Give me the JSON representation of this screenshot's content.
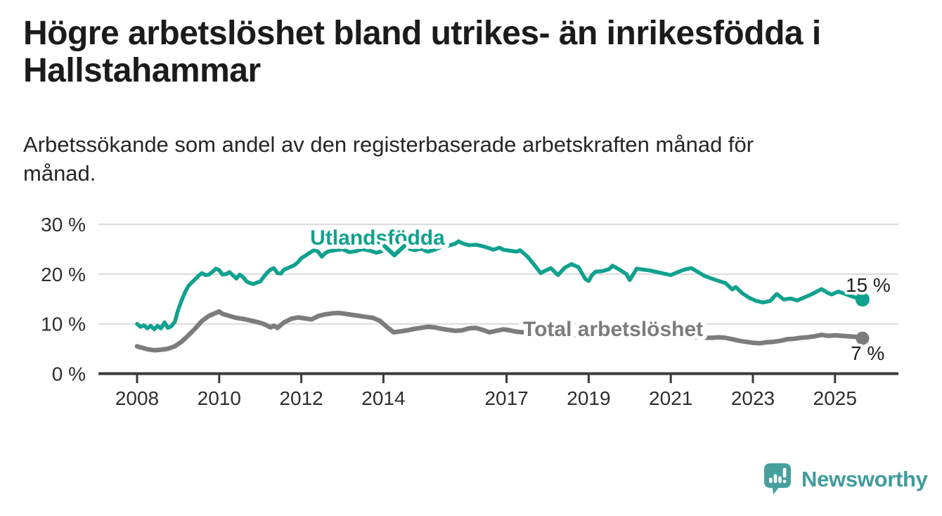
{
  "header": {
    "title": "Högre arbetslöshet bland utrikes- än inrikesfödda i Hallstahammar",
    "subtitle": "Arbetssökande som andel av den registerbaserade arbetskraften månad för månad."
  },
  "footer": {
    "brand": "Newsworthy",
    "logo_icon": "newsworthy-speech-bubble-bar-chart-icon"
  },
  "colors": {
    "accent_teal": "#10a18f",
    "total_gray": "#7c7c7c",
    "grid": "#dadada",
    "axis": "#3b3b3b",
    "axis_text": "#2e2e2e",
    "value_text": "#1f1f1f",
    "logo_teal": "#46a09e"
  },
  "chart_data": {
    "type": "line",
    "title": "Högre arbetslöshet bland utrikes- än inrikesfödda i Hallstahammar",
    "subtitle": "Arbetssökande som andel av den registerbaserade arbetskraften månad för månad.",
    "grid": true,
    "legend_position": "inline-labels",
    "x_axis": {
      "ticks": [
        2008,
        2010,
        2012,
        2014,
        2017,
        2019,
        2021,
        2023,
        2025
      ],
      "labels": [
        "2008",
        "2010",
        "2012",
        "2014",
        "2017",
        "2019",
        "2021",
        "2023",
        "2025"
      ],
      "range": [
        2007.8,
        2026.5
      ]
    },
    "y_axis": {
      "ticks": [
        0,
        10,
        20,
        30
      ],
      "labels": [
        "0 %",
        "10 %",
        "20 %",
        "30 %"
      ],
      "range": [
        0,
        30
      ]
    },
    "series": [
      {
        "name": "Utlandsfödda",
        "color": "#10a18f",
        "end_label": "15 %",
        "end_value": 15,
        "label_pointer": "down-chevron",
        "points": [
          [
            2008.0,
            10.0
          ],
          [
            2008.08,
            9.4
          ],
          [
            2008.17,
            9.7
          ],
          [
            2008.25,
            9.1
          ],
          [
            2008.33,
            9.6
          ],
          [
            2008.42,
            8.9
          ],
          [
            2008.5,
            9.6
          ],
          [
            2008.58,
            9.1
          ],
          [
            2008.67,
            10.3
          ],
          [
            2008.75,
            9.2
          ],
          [
            2008.83,
            9.5
          ],
          [
            2008.92,
            10.4
          ],
          [
            2009.0,
            12.8
          ],
          [
            2009.08,
            14.6
          ],
          [
            2009.17,
            16.4
          ],
          [
            2009.25,
            17.6
          ],
          [
            2009.33,
            18.3
          ],
          [
            2009.42,
            19.0
          ],
          [
            2009.5,
            19.7
          ],
          [
            2009.58,
            20.2
          ],
          [
            2009.67,
            19.8
          ],
          [
            2009.75,
            19.9
          ],
          [
            2009.83,
            20.4
          ],
          [
            2009.92,
            21.1
          ],
          [
            2010.0,
            20.8
          ],
          [
            2010.08,
            19.9
          ],
          [
            2010.17,
            20.0
          ],
          [
            2010.25,
            20.4
          ],
          [
            2010.33,
            19.8
          ],
          [
            2010.42,
            19.1
          ],
          [
            2010.5,
            19.9
          ],
          [
            2010.58,
            19.4
          ],
          [
            2010.67,
            18.5
          ],
          [
            2010.75,
            18.2
          ],
          [
            2010.83,
            18.0
          ],
          [
            2010.92,
            18.3
          ],
          [
            2011.0,
            18.5
          ],
          [
            2011.08,
            19.4
          ],
          [
            2011.17,
            20.3
          ],
          [
            2011.25,
            20.9
          ],
          [
            2011.33,
            21.2
          ],
          [
            2011.42,
            20.2
          ],
          [
            2011.5,
            20.1
          ],
          [
            2011.58,
            20.9
          ],
          [
            2011.67,
            21.2
          ],
          [
            2011.75,
            21.5
          ],
          [
            2011.83,
            21.8
          ],
          [
            2011.92,
            22.4
          ],
          [
            2012.0,
            23.2
          ],
          [
            2012.08,
            23.6
          ],
          [
            2012.17,
            24.1
          ],
          [
            2012.25,
            24.5
          ],
          [
            2012.33,
            24.9
          ],
          [
            2012.42,
            24.4
          ],
          [
            2012.5,
            23.5
          ],
          [
            2012.58,
            24.2
          ],
          [
            2012.67,
            24.6
          ],
          [
            2012.83,
            24.8
          ],
          [
            2013.0,
            25.0
          ],
          [
            2013.17,
            24.4
          ],
          [
            2013.33,
            24.6
          ],
          [
            2013.5,
            25.0
          ],
          [
            2013.67,
            24.7
          ],
          [
            2013.83,
            24.3
          ],
          [
            2014.0,
            24.7
          ],
          [
            2014.17,
            24.5
          ],
          [
            2014.25,
            24.1
          ],
          [
            2014.42,
            25.4
          ],
          [
            2014.58,
            25.2
          ],
          [
            2014.75,
            24.8
          ],
          [
            2014.92,
            25.1
          ],
          [
            2015.08,
            24.5
          ],
          [
            2015.25,
            24.9
          ],
          [
            2015.42,
            25.5
          ],
          [
            2015.58,
            25.7
          ],
          [
            2015.75,
            26.1
          ],
          [
            2015.83,
            26.6
          ],
          [
            2015.92,
            26.2
          ],
          [
            2016.08,
            25.8
          ],
          [
            2016.25,
            25.9
          ],
          [
            2016.42,
            25.6
          ],
          [
            2016.58,
            25.2
          ],
          [
            2016.67,
            24.9
          ],
          [
            2016.83,
            25.3
          ],
          [
            2016.92,
            24.9
          ],
          [
            2017.08,
            24.7
          ],
          [
            2017.25,
            24.5
          ],
          [
            2017.33,
            24.8
          ],
          [
            2017.5,
            23.6
          ],
          [
            2017.67,
            21.9
          ],
          [
            2017.83,
            20.2
          ],
          [
            2017.92,
            20.6
          ],
          [
            2018.08,
            21.2
          ],
          [
            2018.25,
            19.8
          ],
          [
            2018.42,
            21.3
          ],
          [
            2018.58,
            22.0
          ],
          [
            2018.75,
            21.4
          ],
          [
            2018.92,
            19.0
          ],
          [
            2019.0,
            18.6
          ],
          [
            2019.08,
            19.8
          ],
          [
            2019.17,
            20.5
          ],
          [
            2019.33,
            20.6
          ],
          [
            2019.5,
            21.0
          ],
          [
            2019.58,
            21.7
          ],
          [
            2019.75,
            20.9
          ],
          [
            2019.92,
            20.0
          ],
          [
            2020.0,
            18.8
          ],
          [
            2020.17,
            21.1
          ],
          [
            2020.33,
            20.9
          ],
          [
            2020.5,
            20.7
          ],
          [
            2020.67,
            20.4
          ],
          [
            2020.83,
            20.1
          ],
          [
            2021.0,
            19.8
          ],
          [
            2021.17,
            20.4
          ],
          [
            2021.33,
            20.9
          ],
          [
            2021.5,
            21.2
          ],
          [
            2021.67,
            20.4
          ],
          [
            2021.83,
            19.6
          ],
          [
            2022.0,
            19.1
          ],
          [
            2022.17,
            18.6
          ],
          [
            2022.33,
            18.2
          ],
          [
            2022.5,
            16.9
          ],
          [
            2022.58,
            17.4
          ],
          [
            2022.75,
            16.1
          ],
          [
            2022.92,
            15.2
          ],
          [
            2023.08,
            14.6
          ],
          [
            2023.25,
            14.3
          ],
          [
            2023.42,
            14.6
          ],
          [
            2023.58,
            16.0
          ],
          [
            2023.75,
            14.9
          ],
          [
            2023.92,
            15.1
          ],
          [
            2024.08,
            14.7
          ],
          [
            2024.25,
            15.3
          ],
          [
            2024.42,
            15.9
          ],
          [
            2024.58,
            16.6
          ],
          [
            2024.67,
            17.0
          ],
          [
            2024.83,
            16.2
          ],
          [
            2024.92,
            15.9
          ],
          [
            2025.08,
            16.5
          ],
          [
            2025.25,
            16.0
          ],
          [
            2025.42,
            15.5
          ],
          [
            2025.58,
            15.1
          ],
          [
            2025.67,
            14.9
          ]
        ]
      },
      {
        "name": "Total arbetslöshet",
        "color": "#7c7c7c",
        "end_label": "7 %",
        "end_value": 7,
        "points": [
          [
            2008.0,
            5.5
          ],
          [
            2008.08,
            5.3
          ],
          [
            2008.25,
            4.9
          ],
          [
            2008.42,
            4.7
          ],
          [
            2008.58,
            4.8
          ],
          [
            2008.75,
            5.0
          ],
          [
            2008.92,
            5.5
          ],
          [
            2009.08,
            6.4
          ],
          [
            2009.25,
            7.7
          ],
          [
            2009.42,
            9.1
          ],
          [
            2009.58,
            10.6
          ],
          [
            2009.75,
            11.6
          ],
          [
            2009.92,
            12.2
          ],
          [
            2010.0,
            12.5
          ],
          [
            2010.08,
            12.0
          ],
          [
            2010.25,
            11.6
          ],
          [
            2010.42,
            11.2
          ],
          [
            2010.58,
            11.0
          ],
          [
            2010.75,
            10.7
          ],
          [
            2010.92,
            10.4
          ],
          [
            2011.08,
            10.0
          ],
          [
            2011.25,
            9.3
          ],
          [
            2011.33,
            9.6
          ],
          [
            2011.42,
            9.2
          ],
          [
            2011.58,
            10.3
          ],
          [
            2011.75,
            11.0
          ],
          [
            2011.92,
            11.3
          ],
          [
            2012.08,
            11.1
          ],
          [
            2012.25,
            10.9
          ],
          [
            2012.42,
            11.6
          ],
          [
            2012.58,
            11.9
          ],
          [
            2012.75,
            12.1
          ],
          [
            2012.92,
            12.2
          ],
          [
            2013.08,
            12.0
          ],
          [
            2013.25,
            11.8
          ],
          [
            2013.42,
            11.6
          ],
          [
            2013.58,
            11.4
          ],
          [
            2013.75,
            11.2
          ],
          [
            2013.92,
            10.6
          ],
          [
            2014.08,
            9.4
          ],
          [
            2014.25,
            8.3
          ],
          [
            2014.42,
            8.5
          ],
          [
            2014.58,
            8.7
          ],
          [
            2014.75,
            9.0
          ],
          [
            2014.92,
            9.2
          ],
          [
            2015.08,
            9.4
          ],
          [
            2015.25,
            9.3
          ],
          [
            2015.42,
            9.0
          ],
          [
            2015.58,
            8.8
          ],
          [
            2015.75,
            8.6
          ],
          [
            2015.92,
            8.7
          ],
          [
            2016.08,
            9.1
          ],
          [
            2016.25,
            9.2
          ],
          [
            2016.42,
            8.8
          ],
          [
            2016.58,
            8.3
          ],
          [
            2016.75,
            8.6
          ],
          [
            2016.92,
            8.9
          ],
          [
            2017.08,
            8.7
          ],
          [
            2017.25,
            8.4
          ],
          [
            2017.42,
            8.3
          ],
          [
            2017.58,
            8.1
          ],
          [
            2017.75,
            8.0
          ],
          [
            2018.0,
            7.9
          ],
          [
            2018.25,
            7.8
          ],
          [
            2018.5,
            7.8
          ],
          [
            2018.75,
            7.7
          ],
          [
            2019.0,
            7.7
          ],
          [
            2019.25,
            7.6
          ],
          [
            2019.5,
            7.6
          ],
          [
            2019.75,
            7.7
          ],
          [
            2020.0,
            7.8
          ],
          [
            2020.25,
            7.9
          ],
          [
            2020.5,
            7.9
          ],
          [
            2020.75,
            7.8
          ],
          [
            2021.0,
            7.6
          ],
          [
            2021.25,
            7.5
          ],
          [
            2021.5,
            7.3
          ],
          [
            2021.75,
            7.2
          ],
          [
            2022.0,
            7.2
          ],
          [
            2022.17,
            7.3
          ],
          [
            2022.33,
            7.2
          ],
          [
            2022.5,
            6.9
          ],
          [
            2022.67,
            6.6
          ],
          [
            2022.83,
            6.4
          ],
          [
            2023.0,
            6.2
          ],
          [
            2023.17,
            6.1
          ],
          [
            2023.33,
            6.3
          ],
          [
            2023.5,
            6.4
          ],
          [
            2023.67,
            6.6
          ],
          [
            2023.83,
            6.9
          ],
          [
            2024.0,
            7.0
          ],
          [
            2024.17,
            7.2
          ],
          [
            2024.33,
            7.3
          ],
          [
            2024.5,
            7.5
          ],
          [
            2024.67,
            7.8
          ],
          [
            2024.83,
            7.6
          ],
          [
            2025.0,
            7.7
          ],
          [
            2025.17,
            7.6
          ],
          [
            2025.33,
            7.5
          ],
          [
            2025.5,
            7.4
          ],
          [
            2025.67,
            7.1
          ]
        ]
      }
    ]
  }
}
